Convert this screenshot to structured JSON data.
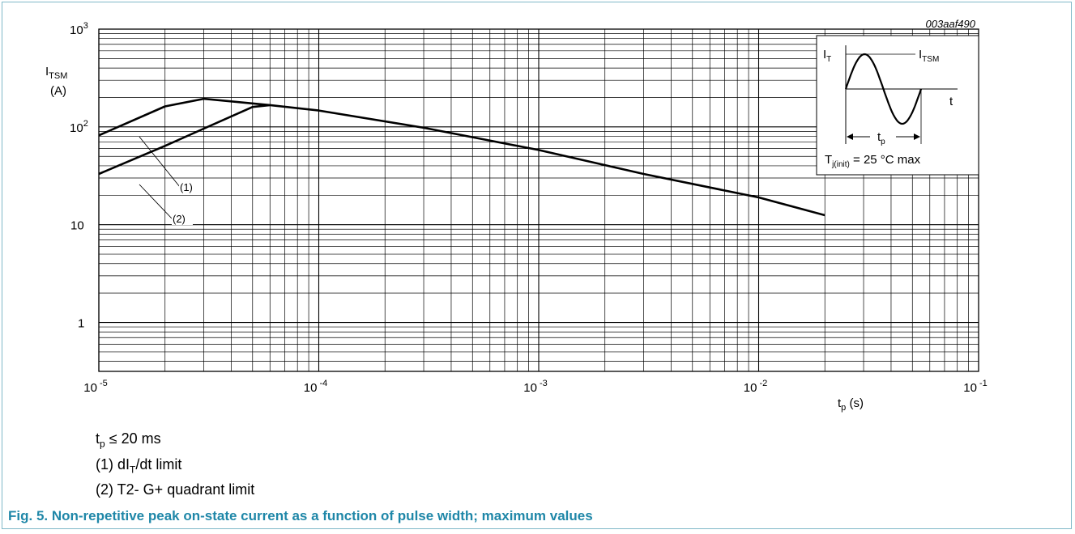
{
  "figure_id": "003aaf490",
  "caption": "Fig. 5. Non-repetitive peak on-state current as a function of pulse width; maximum values",
  "notes": {
    "tp_limit": {
      "main": "t",
      "sub": "p",
      "rest": " ≤ 20 ms"
    },
    "note1": {
      "pre": "(1) dI",
      "sub": "T",
      "post": "/dt limit"
    },
    "note2": "(2) T2- G+ quadrant limit"
  },
  "colors": {
    "line": "#000000",
    "grid": "#000000",
    "caption": "#1f87a8",
    "frame": "#7fb8c8"
  },
  "chart_data": {
    "type": "line",
    "x_scale": "log",
    "y_scale": "log",
    "xlim": [
      1e-05,
      0.1
    ],
    "ylim": [
      0.316,
      1000
    ],
    "grid": true,
    "xlabel": {
      "main": "t",
      "sub": "p",
      "rest": " (s)"
    },
    "ylabel": {
      "main": "I",
      "sub": "TSM",
      "unit": "(A)"
    },
    "x_ticks": [
      {
        "value": 1e-05,
        "base": "10",
        "exp": "-5"
      },
      {
        "value": 0.0001,
        "base": "10",
        "exp": "-4"
      },
      {
        "value": 0.001,
        "base": "10",
        "exp": "-3"
      },
      {
        "value": 0.01,
        "base": "10",
        "exp": "-2"
      },
      {
        "value": 0.1,
        "base": "10",
        "exp": "-1"
      }
    ],
    "y_ticks": [
      {
        "value": 1000,
        "base": "10",
        "exp": "3"
      },
      {
        "value": 100,
        "base": "10",
        "exp": "2"
      },
      {
        "value": 10,
        "base": "10",
        "exp": ""
      },
      {
        "value": 1,
        "base": "1",
        "exp": ""
      }
    ],
    "series": [
      {
        "name": "(1)",
        "x": [
          1e-05,
          2e-05,
          3e-05,
          6e-05,
          0.0001,
          0.0003,
          0.001,
          0.003,
          0.01,
          0.02
        ],
        "y": [
          82,
          162,
          194,
          167,
          147,
          98,
          58,
          33,
          19,
          12.5
        ]
      },
      {
        "name": "(2)",
        "x": [
          1e-05,
          2e-05,
          3e-05,
          5e-05,
          6e-05
        ],
        "y": [
          33,
          64,
          96,
          160,
          167
        ]
      }
    ],
    "inset": {
      "i_t": {
        "main": "I",
        "sub": "T"
      },
      "i_tsm": {
        "main": "I",
        "sub": "TSM"
      },
      "t": "t",
      "tp": {
        "main": "t",
        "sub": "p"
      },
      "tj": {
        "main": "T",
        "sub": "j(init)",
        "rest": " = 25 °C max"
      }
    }
  }
}
